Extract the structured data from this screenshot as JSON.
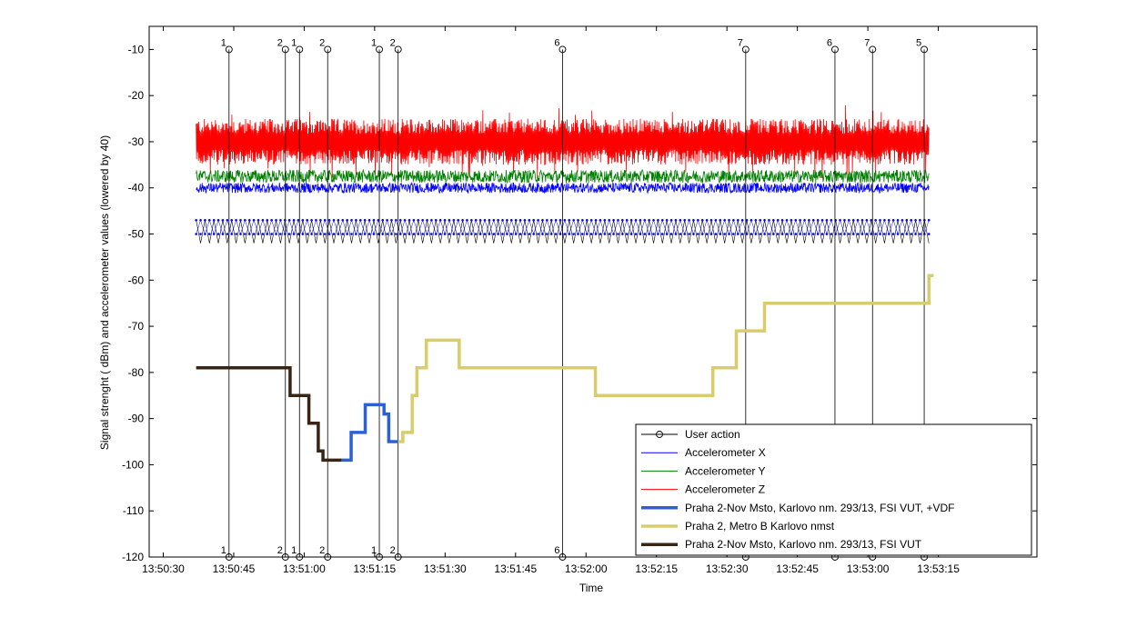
{
  "chart_data": {
    "type": "line",
    "title": "",
    "xlabel": "Time",
    "ylabel": "Signal strenght ( dBm) and accelerometer values (lowered by 40)",
    "xlim": [
      "13:50:27",
      "13:53:36"
    ],
    "ylim": [
      -120,
      -5
    ],
    "x_ticks": [
      "13:50:30",
      "13:50:45",
      "13:51:00",
      "13:51:15",
      "13:51:30",
      "13:51:45",
      "13:52:00",
      "13:52:15",
      "13:52:30",
      "13:52:45",
      "13:53:00",
      "13:53:15"
    ],
    "y_ticks": [
      -10,
      -20,
      -30,
      -40,
      -50,
      -60,
      -70,
      -80,
      -90,
      -100,
      -110,
      -120
    ],
    "grid": false,
    "legend_position": "bottom-right",
    "colors": {
      "user_action": "#000000",
      "acc_x": "#0000ff",
      "acc_y": "#008000",
      "acc_z": "#ff0000",
      "cell_1": "#2b60d6",
      "cell_2": "#d8cd6a",
      "cell_3": "#3a2414"
    },
    "user_actions": [
      {
        "time": "13:50:44",
        "label": "1"
      },
      {
        "time": "13:50:56",
        "label": "2"
      },
      {
        "time": "13:50:59",
        "label": "1"
      },
      {
        "time": "13:51:05",
        "label": "2"
      },
      {
        "time": "13:51:16",
        "label": "1"
      },
      {
        "time": "13:51:20",
        "label": "2"
      },
      {
        "time": "13:51:55",
        "label": "6"
      },
      {
        "time": "13:52:34",
        "label": "7"
      },
      {
        "time": "13:52:53",
        "label": "6"
      },
      {
        "time": "13:53:01",
        "label": "7"
      },
      {
        "time": "13:53:12",
        "label": "5"
      }
    ],
    "accelerometer": {
      "t_start": "13:50:37",
      "t_end": "13:53:13",
      "x_mean": -40,
      "y_mean": -37.5,
      "z_mean": -30
    },
    "pattern_rows": [
      {
        "level": -47,
        "color": "#0000ff"
      },
      {
        "level": -50,
        "color": "#0000ff"
      },
      {
        "level": -52,
        "color": "#000000"
      }
    ],
    "series": [
      {
        "name": "Praha 2-Nov Msto, Karlovo nm. 293/13, FSI VUT",
        "color": "#3a2414",
        "points": [
          [
            "13:50:37",
            -79
          ],
          [
            "13:50:57",
            -79
          ],
          [
            "13:50:57",
            -85
          ],
          [
            "13:51:01",
            -85
          ],
          [
            "13:51:01",
            -91
          ],
          [
            "13:51:03",
            -91
          ],
          [
            "13:51:03",
            -97
          ],
          [
            "13:51:04",
            -97
          ],
          [
            "13:51:04",
            -99
          ],
          [
            "13:51:08",
            -99
          ]
        ]
      },
      {
        "name": "Praha 2-Nov Msto, Karlovo nm. 293/13, FSI VUT, +VDF",
        "color": "#2b60d6",
        "points": [
          [
            "13:51:08",
            -99
          ],
          [
            "13:51:10",
            -99
          ],
          [
            "13:51:10",
            -93
          ],
          [
            "13:51:13",
            -93
          ],
          [
            "13:51:13",
            -87
          ],
          [
            "13:51:17",
            -87
          ],
          [
            "13:51:17",
            -89
          ],
          [
            "13:51:18",
            -89
          ],
          [
            "13:51:18",
            -95
          ],
          [
            "13:51:20",
            -95
          ]
        ]
      },
      {
        "name": "Praha 2, Metro B Karlovo nmst",
        "color": "#d8cd6a",
        "points": [
          [
            "13:51:20",
            -95
          ],
          [
            "13:51:21",
            -95
          ],
          [
            "13:51:21",
            -93
          ],
          [
            "13:51:23",
            -93
          ],
          [
            "13:51:23",
            -85
          ],
          [
            "13:51:24",
            -85
          ],
          [
            "13:51:24",
            -79
          ],
          [
            "13:51:26",
            -79
          ],
          [
            "13:51:26",
            -73
          ],
          [
            "13:51:33",
            -73
          ],
          [
            "13:51:33",
            -79
          ],
          [
            "13:52:02",
            -79
          ],
          [
            "13:52:02",
            -85
          ],
          [
            "13:52:27",
            -85
          ],
          [
            "13:52:27",
            -79
          ],
          [
            "13:52:32",
            -79
          ],
          [
            "13:52:32",
            -71
          ],
          [
            "13:52:38",
            -71
          ],
          [
            "13:52:38",
            -65
          ],
          [
            "13:53:13",
            -65
          ],
          [
            "13:53:13",
            -59
          ],
          [
            "13:53:14",
            -59
          ]
        ]
      }
    ],
    "legend": [
      {
        "label": "User action",
        "style": "marker-line",
        "color": "#000000"
      },
      {
        "label": "Accelerometer X",
        "style": "thin",
        "color": "#0000ff"
      },
      {
        "label": "Accelerometer Y",
        "style": "thin",
        "color": "#008000"
      },
      {
        "label": "Accelerometer Z",
        "style": "thin",
        "color": "#ff0000"
      },
      {
        "label": "Praha 2-Nov Msto, Karlovo nm. 293/13, FSI VUT, +VDF",
        "style": "thick",
        "color": "#2b60d6"
      },
      {
        "label": "Praha 2, Metro B Karlovo nmst",
        "style": "thick",
        "color": "#d8cd6a"
      },
      {
        "label": "Praha 2-Nov Msto, Karlovo nm. 293/13, FSI VUT",
        "style": "thick",
        "color": "#3a2414"
      }
    ]
  }
}
